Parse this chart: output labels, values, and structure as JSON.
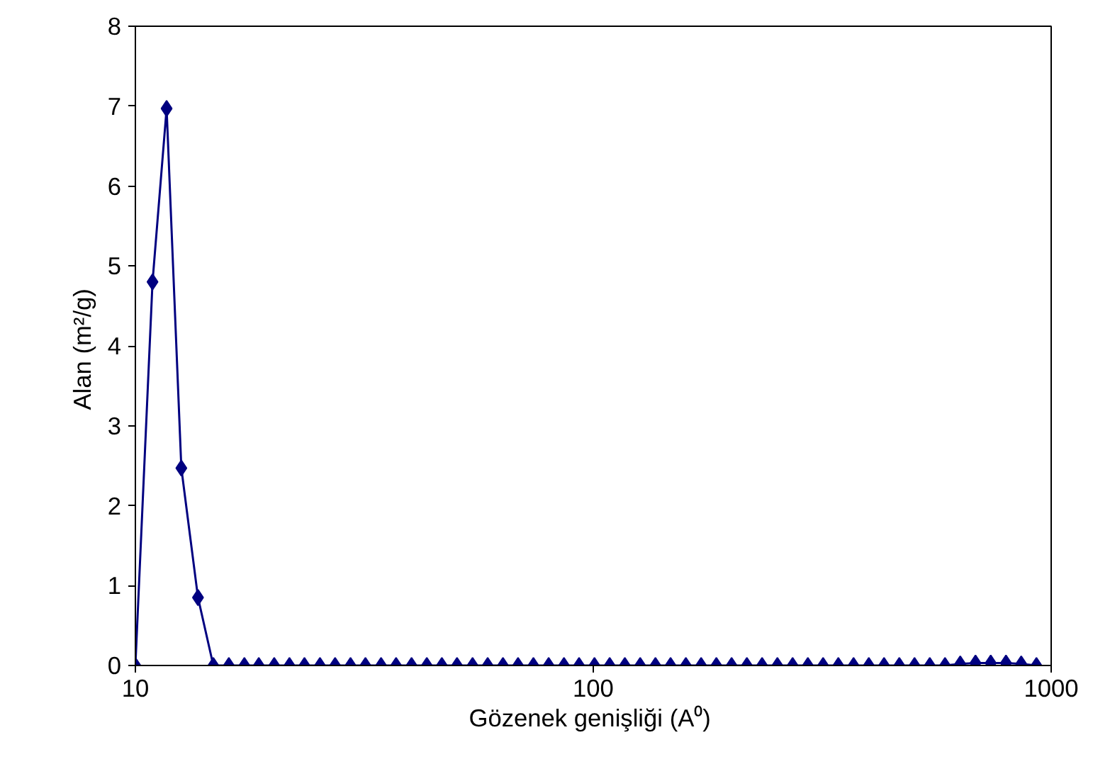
{
  "chart_data": {
    "type": "line",
    "xlabel": "Gözenek genişliği  (A⁰)",
    "ylabel": "Alan  (m²/g)",
    "x": [
      10,
      10.9,
      11.7,
      12.6,
      13.7,
      14.8,
      16.0,
      17.3,
      18.6,
      20.1,
      21.7,
      23.4,
      25.3,
      27.3,
      29.5,
      31.8,
      34.4,
      37.1,
      40.1,
      43.3,
      46.7,
      50.4,
      54.5,
      58.8,
      63.5,
      68.5,
      74.0,
      79.9,
      86.3,
      93.1,
      100.6,
      108.6,
      117.2,
      126.6,
      136.7,
      147.5,
      159.3,
      172.0,
      185.7,
      200.5,
      216.5,
      233.7,
      252.4,
      272.5,
      294.2,
      317.6,
      342.9,
      370.2,
      399.7,
      431.5,
      465.9,
      503.0,
      543.1,
      586.3,
      633.0,
      683.5,
      737.9,
      796.7,
      860.1,
      928.6
    ],
    "series": [
      {
        "color": "#000080",
        "values": [
          0,
          4.8,
          6.97,
          2.47,
          0.85,
          0,
          0,
          0,
          0,
          0,
          0,
          0,
          0,
          0,
          0,
          0,
          0,
          0,
          0,
          0,
          0,
          0,
          0,
          0,
          0,
          0,
          0,
          0,
          0,
          0,
          0,
          0,
          0,
          0,
          0,
          0,
          0,
          0,
          0,
          0,
          0,
          0,
          0,
          0,
          0,
          0,
          0,
          0,
          0,
          0,
          0,
          0,
          0,
          0,
          0.02,
          0.03,
          0.03,
          0.03,
          0.02,
          0
        ]
      }
    ],
    "log": "x",
    "xlim": [
      10,
      1000
    ],
    "xticks": [
      10,
      100,
      1000
    ],
    "ylim": [
      0,
      8
    ],
    "yticks": [
      0,
      1,
      2,
      3,
      4,
      5,
      6,
      7,
      8
    ],
    "grid": false,
    "marker": "diamond",
    "line_style": "solid"
  }
}
